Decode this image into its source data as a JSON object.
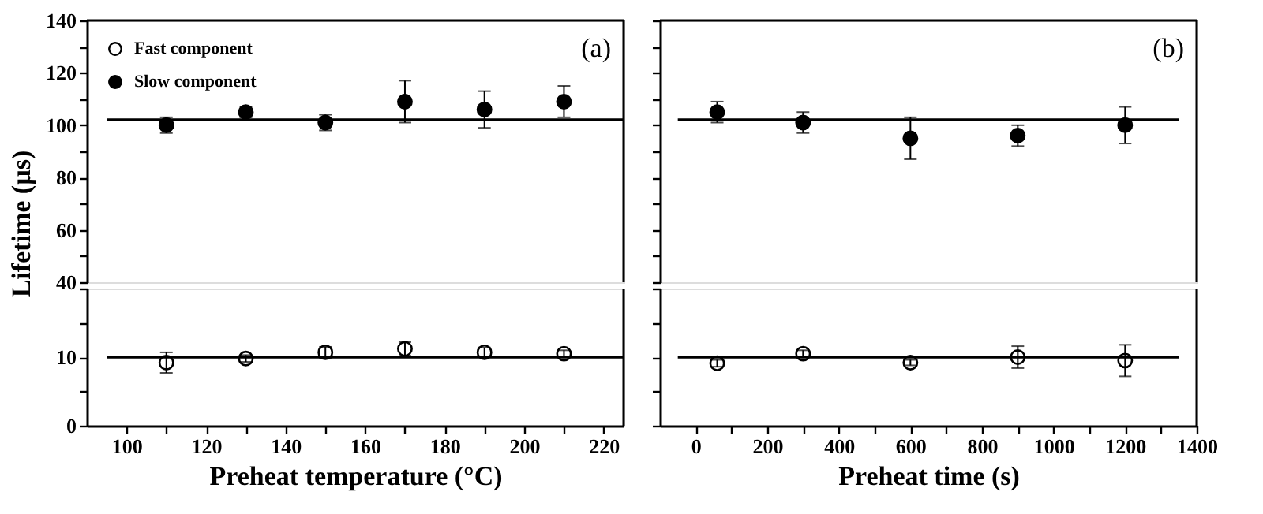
{
  "chart_data": [
    {
      "type": "scatter",
      "xlim": [
        90,
        225
      ],
      "ylim": [
        40,
        140
      ],
      "yticks": [
        40,
        {
          "value": 50,
          "label": null
        },
        60,
        {
          "value": 70,
          "label": null
        },
        80,
        {
          "value": 90,
          "label": null
        },
        100,
        {
          "value": 110,
          "label": null
        },
        120,
        {
          "value": 130,
          "label": null
        },
        140
      ],
      "tick_labels": "y",
      "ylabel": "Lifetime (µs)",
      "legend": "top left",
      "marker": "circle",
      "annotations": [
        "(a)"
      ],
      "x": [
        110,
        130,
        150,
        170,
        190,
        210
      ],
      "series": [
        {
          "name": "Slow component",
          "type": "scatter",
          "color": "#000000",
          "values": [
            100,
            105,
            101,
            109,
            106,
            109
          ],
          "errors": [
            3,
            2,
            3,
            8,
            7,
            6
          ]
        },
        {
          "type": "line",
          "marker": "none",
          "color": "#000000",
          "x": [
            95,
            225
          ],
          "values": [
            102,
            102
          ]
        }
      ]
    },
    {
      "type": "scatter",
      "xlim": [
        90,
        225
      ],
      "xticks": [
        100,
        {
          "value": 110,
          "label": null
        },
        120,
        {
          "value": 130,
          "label": null
        },
        140,
        {
          "value": 150,
          "label": null
        },
        160,
        {
          "value": 170,
          "label": null
        },
        180,
        {
          "value": 190,
          "label": null
        },
        200,
        {
          "value": 210,
          "label": null
        },
        220
      ],
      "ylim": [
        0,
        20
      ],
      "yticks": [
        0,
        {
          "value": 5,
          "label": null
        },
        10,
        {
          "value": 15,
          "label": null
        },
        {
          "value": 20,
          "label": null
        }
      ],
      "xlabel": "Preheat temperature (°C)",
      "marker": "circle",
      "x": [
        110,
        130,
        150,
        170,
        190,
        210
      ],
      "series": [
        {
          "name": "Fast component",
          "type": "scatter",
          "color": "#ffffff",
          "values": [
            9.2,
            9.8,
            10.7,
            11.2,
            10.7,
            10.5
          ],
          "errors": [
            1.5,
            0.5,
            0.8,
            1,
            0.7,
            0.5
          ]
        },
        {
          "type": "line",
          "marker": "none",
          "color": "#000000",
          "x": [
            95,
            225
          ],
          "values": [
            10,
            10
          ]
        }
      ]
    },
    {
      "type": "scatter",
      "xlim": [
        -100,
        1400
      ],
      "ylim": [
        40,
        140
      ],
      "yticks": [
        40,
        {
          "value": 50,
          "label": null
        },
        60,
        {
          "value": 70,
          "label": null
        },
        80,
        {
          "value": 90,
          "label": null
        },
        100,
        {
          "value": 110,
          "label": null
        },
        120,
        {
          "value": 130,
          "label": null
        },
        140
      ],
      "tick_labels": false,
      "marker": "circle",
      "annotations": [
        "(b)"
      ],
      "x": [
        60,
        300,
        600,
        900,
        1200
      ],
      "series": [
        {
          "type": "scatter",
          "color": "#000000",
          "values": [
            105,
            101,
            95,
            96,
            100
          ],
          "errors": [
            4,
            4,
            8,
            4,
            7
          ]
        },
        {
          "type": "line",
          "marker": "none",
          "color": "#000000",
          "x": [
            -50,
            1350
          ],
          "values": [
            102,
            102
          ]
        }
      ]
    },
    {
      "type": "scatter",
      "xlim": [
        -100,
        1400
      ],
      "xticks": [
        0,
        {
          "value": 100,
          "label": null
        },
        200,
        {
          "value": 300,
          "label": null
        },
        400,
        {
          "value": 500,
          "label": null
        },
        600,
        {
          "value": 700,
          "label": null
        },
        800,
        {
          "value": 900,
          "label": null
        },
        1000,
        {
          "value": 1100,
          "label": null
        },
        1200,
        {
          "value": 1300,
          "label": null
        },
        1400
      ],
      "ylim": [
        0,
        20
      ],
      "yticks": [
        0,
        {
          "value": 5,
          "label": null
        },
        10,
        {
          "value": 15,
          "label": null
        },
        {
          "value": 20,
          "label": null
        }
      ],
      "tick_labels": "x",
      "xlabel": "Preheat time (s)",
      "marker": "circle",
      "x": [
        60,
        300,
        600,
        900,
        1200
      ],
      "series": [
        {
          "type": "scatter",
          "color": "#ffffff",
          "values": [
            9.1,
            10.5,
            9.2,
            10,
            9.5
          ],
          "errors": [
            0.5,
            0.5,
            0.4,
            1.6,
            2.3
          ]
        },
        {
          "type": "line",
          "marker": "none",
          "color": "#000000",
          "x": [
            -50,
            1350
          ],
          "values": [
            10,
            10
          ]
        }
      ]
    }
  ]
}
